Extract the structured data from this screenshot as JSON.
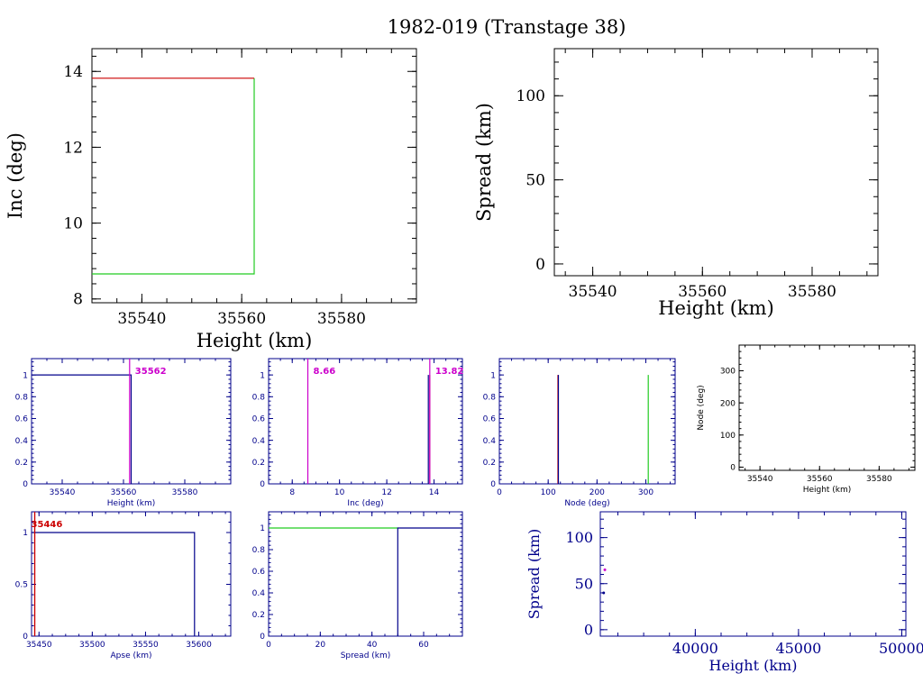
{
  "page": {
    "title": "1982-019 (Transtage 38)"
  },
  "colors": {
    "black": "#000000",
    "navy": "#00008b",
    "red": "#cc0000",
    "green": "#22cc22",
    "magenta": "#cc00cc"
  },
  "chart_data": [
    {
      "type": "line",
      "name": "inc-vs-height",
      "xlabel": "Height (km)",
      "ylabel": "Inc (deg)",
      "xlim": [
        35530,
        35595
      ],
      "ylim": [
        7.9,
        14.6
      ],
      "xticks": [
        "35540",
        "35560",
        "35580"
      ],
      "yticks": [
        "8",
        "10",
        "12",
        "14"
      ],
      "series": [
        {
          "color": "green",
          "points": [
            [
              35530,
              8.66
            ],
            [
              35562.5,
              8.66
            ],
            [
              35562.5,
              13.82
            ]
          ]
        },
        {
          "color": "red",
          "points": [
            [
              35530,
              13.82
            ],
            [
              35562.5,
              13.82
            ]
          ]
        }
      ]
    },
    {
      "type": "scatter",
      "name": "spread-vs-height",
      "xlabel": "Height (km)",
      "ylabel": "Spread (km)",
      "xlim": [
        35533,
        35592
      ],
      "ylim": [
        -7,
        128
      ],
      "xticks": [
        "35540",
        "35560",
        "35580"
      ],
      "yticks": [
        "0",
        "50",
        "100"
      ],
      "series": []
    },
    {
      "type": "line",
      "name": "height-cdf",
      "xlabel": "Height (km)",
      "ylabel": "",
      "xlim": [
        35530,
        35595
      ],
      "ylim": [
        0,
        1.15
      ],
      "xticks": [
        "35540",
        "35560",
        "35580"
      ],
      "yticks": [
        "0",
        "0.2",
        "0.4",
        "0.6",
        "0.8",
        "1"
      ],
      "annotations": [
        {
          "label": "35562",
          "x": 35562
        }
      ],
      "series": [
        {
          "color": "navy",
          "points": [
            [
              35530,
              1
            ],
            [
              35562.5,
              1
            ],
            [
              35562.5,
              0
            ]
          ]
        }
      ]
    },
    {
      "type": "line",
      "name": "inc-cdf",
      "xlabel": "Inc (deg)",
      "ylabel": "",
      "xlim": [
        7,
        15.2
      ],
      "ylim": [
        0,
        1.15
      ],
      "xticks": [
        "8",
        "10",
        "12",
        "14"
      ],
      "yticks": [
        "0",
        "0.2",
        "0.4",
        "0.6",
        "0.8",
        "1"
      ],
      "annotations": [
        {
          "label": "8.66",
          "x": 8.66
        },
        {
          "label": "13.82",
          "x": 13.82
        }
      ],
      "series": [
        {
          "color": "navy",
          "points": [
            [
              13.76,
              0
            ],
            [
              13.76,
              1
            ]
          ]
        },
        {
          "color": "red",
          "points": [
            [
              13.82,
              0
            ],
            [
              13.82,
              1
            ]
          ]
        }
      ]
    },
    {
      "type": "line",
      "name": "node-cdf",
      "xlabel": "Node (deg)",
      "ylabel": "",
      "xlim": [
        0,
        360
      ],
      "ylim": [
        0,
        1.15
      ],
      "xticks": [
        "0",
        "100",
        "200",
        "300"
      ],
      "yticks": [
        "0",
        "0.2",
        "0.4",
        "0.6",
        "0.8",
        "1"
      ],
      "series": [
        {
          "color": "red",
          "points": [
            [
              120,
              0
            ],
            [
              120,
              1
            ]
          ]
        },
        {
          "color": "navy",
          "points": [
            [
              121,
              0
            ],
            [
              121,
              1
            ]
          ]
        },
        {
          "color": "green",
          "points": [
            [
              305,
              0
            ],
            [
              305,
              1
            ]
          ]
        }
      ]
    },
    {
      "type": "scatter",
      "name": "node-vs-height",
      "xlabel": "Height (km)",
      "ylabel": "Node (deg)",
      "xlim": [
        35533,
        35592
      ],
      "ylim": [
        -10,
        380
      ],
      "xticks": [
        "35540",
        "35560",
        "35580"
      ],
      "yticks": [
        "0",
        "100",
        "200",
        "300"
      ],
      "series": []
    },
    {
      "type": "line",
      "name": "apse-cdf",
      "xlabel": "Apse (km)",
      "ylabel": "",
      "xlim": [
        35443,
        35630
      ],
      "ylim": [
        0,
        1.2
      ],
      "xticks": [
        "35450",
        "35500",
        "35550",
        "35600"
      ],
      "yticks": [
        "0",
        "0.5",
        "1"
      ],
      "annotations": [
        {
          "label": "35446",
          "x": 35446
        }
      ],
      "series": [
        {
          "color": "navy",
          "points": [
            [
              35443,
              1
            ],
            [
              35596,
              1
            ],
            [
              35596,
              0
            ]
          ]
        },
        {
          "color": "red",
          "points": [
            [
              35446,
              0
            ],
            [
              35446,
              1.2
            ]
          ]
        }
      ]
    },
    {
      "type": "line",
      "name": "spread-cdf",
      "xlabel": "Spread (km)",
      "ylabel": "",
      "xlim": [
        0,
        75
      ],
      "ylim": [
        0,
        1.15
      ],
      "xticks": [
        "0",
        "20",
        "40",
        "60"
      ],
      "yticks": [
        "0",
        "0.2",
        "0.4",
        "0.6",
        "0.8",
        "1"
      ],
      "series": [
        {
          "color": "green",
          "points": [
            [
              0,
              1
            ],
            [
              50,
              1
            ]
          ]
        },
        {
          "color": "navy",
          "points": [
            [
              50,
              0
            ],
            [
              50,
              1
            ],
            [
              75,
              1
            ]
          ]
        }
      ]
    },
    {
      "type": "scatter",
      "name": "spread-vs-height-wide",
      "xlabel": "Height (km)",
      "ylabel": "Spread (km)",
      "xlim": [
        35400,
        50200
      ],
      "ylim": [
        -7,
        128
      ],
      "xticks": [
        "40000",
        "45000",
        "50000"
      ],
      "yticks": [
        "0",
        "50",
        "100"
      ],
      "series": [
        {
          "color": "navy",
          "points": [
            [
              35562,
              40
            ]
          ]
        },
        {
          "color": "magenta",
          "points": [
            [
              35620,
              65
            ]
          ]
        }
      ]
    }
  ]
}
